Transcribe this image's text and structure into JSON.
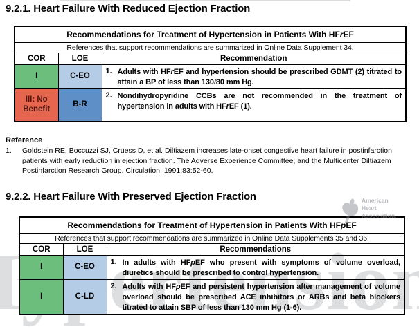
{
  "colors": {
    "green": "#6CBE7D",
    "light_blue": "#B5CCE7",
    "mid_blue": "#5E8FC7",
    "red": "#E5654F",
    "red_text": "#4F140A"
  },
  "section1": {
    "title": "9.2.1. Heart Failure With Reduced Ejection Fraction",
    "table": {
      "title_segments": [
        {
          "t": "Recommendations for Treatment of Hypertension in Patients With HF"
        },
        {
          "t": "r",
          "i": true
        },
        {
          "t": "EF"
        }
      ],
      "subtitle": "References that support recommendations are summarized in Online Data Supplement 34.",
      "col_headers": {
        "cor": "COR",
        "loe": "LOE",
        "rec": "Recommendation"
      },
      "rows": [
        {
          "cor": "I",
          "loe": "C-EO",
          "num": "1.",
          "rec_segments": [
            {
              "t": "Adults with HF"
            },
            {
              "t": "r",
              "i": true
            },
            {
              "t": "EF and hypertension should be prescribed GDMT (2) titrated to attain a BP of less than 130/80 mm Hg."
            }
          ]
        },
        {
          "cor": "III: No Benefit",
          "loe": "B-R",
          "num": "2.",
          "rec_segments": [
            {
              "t": "Nondihydropyridine CCBs are not recommended in the treatment of hypertension in adults with HF"
            },
            {
              "t": "r",
              "i": true
            },
            {
              "t": "EF (1)."
            }
          ]
        }
      ]
    },
    "reference": {
      "heading": "Reference",
      "items": [
        {
          "num": "1.",
          "text": "Goldstein RE, Boccuzzi SJ, Cruess D, et al. Diltiazem increases late-onset congestive heart failure in postinfarction patients with early reduction in ejection fraction. The Adverse Experience Committee; and the Multicenter Diltiazem Postinfarction Research Group. Circulation. 1991;83:52-60."
        }
      ]
    }
  },
  "section2": {
    "title": "9.2.2. Heart Failure With Preserved Ejection Fraction",
    "table": {
      "title_segments": [
        {
          "t": "Recommendations for Treatment of Hypertension in Patients With HF"
        },
        {
          "t": "p",
          "i": true
        },
        {
          "t": "EF"
        }
      ],
      "subtitle": "References that support recommendations are summarized in Online Data Supplements 35 and 36.",
      "col_headers": {
        "cor": "COR",
        "loe": "LOE",
        "rec": "Recommendations"
      },
      "rows": [
        {
          "cor": "I",
          "loe": "C-EO",
          "num": "1.",
          "rec_segments": [
            {
              "t": "In adults with HF"
            },
            {
              "t": "p",
              "i": true
            },
            {
              "t": "EF who present with symptoms of volume overload, diuretics should be prescribed to control hypertension."
            }
          ]
        },
        {
          "cor": "I",
          "loe": "C-LD",
          "num": "2.",
          "rec_segments": [
            {
              "t": "Adults with HF"
            },
            {
              "t": "p",
              "i": true
            },
            {
              "t": "EF and persistent hypertension after management of volume overload should be prescribed ACE inhibitors or ARBs and beta blockers titrated to attain SBP of less than 130 mm Hg (1-6)."
            }
          ]
        }
      ]
    }
  },
  "watermarks": {
    "journal": "Hypertension",
    "aha": {
      "line1": "American",
      "line2": "Heart",
      "line3": "Association."
    }
  }
}
